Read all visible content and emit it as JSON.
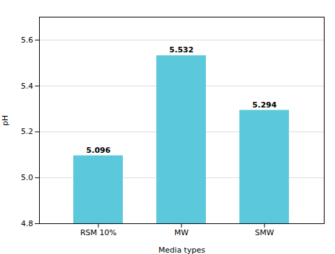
{
  "chart_data": {
    "type": "bar",
    "categories": [
      "RSM 10%",
      "MW",
      "SMW"
    ],
    "values": [
      5.096,
      5.532,
      5.294
    ],
    "data_labels": true,
    "color": "#5BC8DC",
    "xlabel": "Media types",
    "ylabel": "pH",
    "ylim": [
      4.8,
      5.7
    ],
    "yticks": [
      4.8,
      {
        "value": 5,
        "label": "5.0"
      },
      5.2,
      5.4,
      5.6
    ],
    "grid": true
  }
}
